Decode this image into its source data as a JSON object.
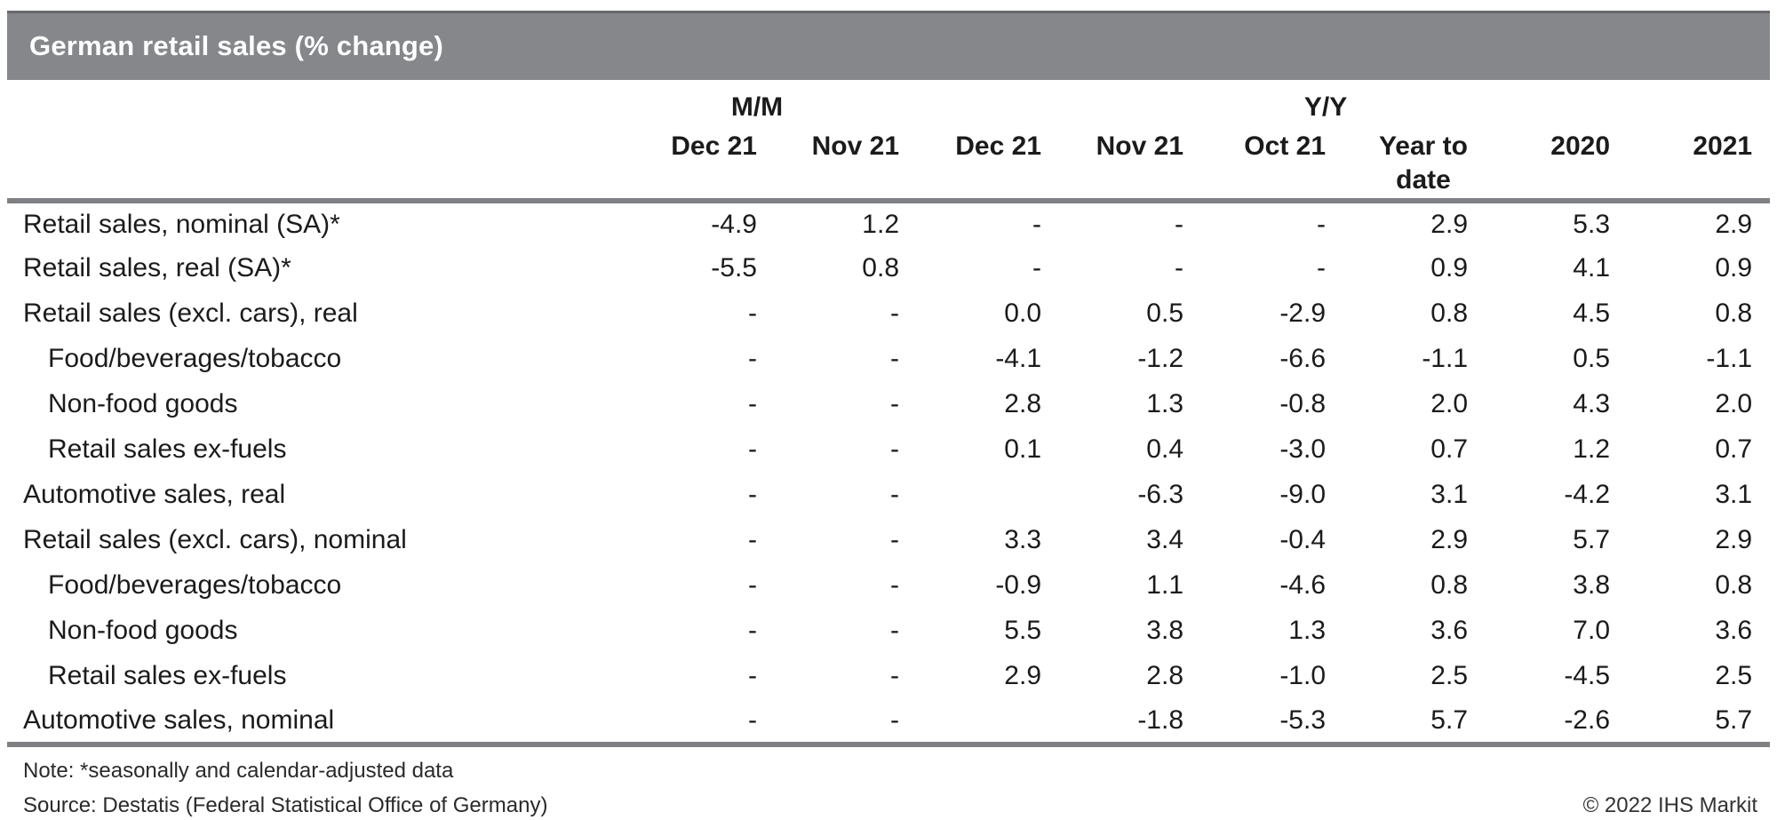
{
  "title_bar": {
    "title": "German retail sales (% change)",
    "background_color": "#85878a",
    "title_color": "#ffffff"
  },
  "chart_data": {
    "type": "table",
    "title": "German retail sales (% change)",
    "group_headers": [
      {
        "label": "M/M",
        "span": 2
      },
      {
        "label": "Y/Y",
        "span": 6
      }
    ],
    "columns": [
      {
        "label": "Dec 21"
      },
      {
        "label": "Nov 21"
      },
      {
        "label": "Dec 21"
      },
      {
        "label": "Nov 21"
      },
      {
        "label": "Oct 21"
      },
      {
        "label": "Year to date",
        "lines": [
          "Year to",
          "date"
        ]
      },
      {
        "label": "2020"
      },
      {
        "label": "2021"
      }
    ],
    "rows": [
      {
        "label": "Retail sales, nominal (SA)*",
        "indent": false,
        "values": [
          "-4.9",
          "1.2",
          "-",
          "-",
          "-",
          "2.9",
          "5.3",
          "2.9"
        ]
      },
      {
        "label": "Retail sales, real (SA)*",
        "indent": false,
        "values": [
          "-5.5",
          "0.8",
          "-",
          "-",
          "-",
          "0.9",
          "4.1",
          "0.9"
        ]
      },
      {
        "label": "Retail sales (excl. cars), real",
        "indent": false,
        "values": [
          "-",
          "-",
          "0.0",
          "0.5",
          "-2.9",
          "0.8",
          "4.5",
          "0.8"
        ]
      },
      {
        "label": "Food/beverages/tobacco",
        "indent": true,
        "values": [
          "-",
          "-",
          "-4.1",
          "-1.2",
          "-6.6",
          "-1.1",
          "0.5",
          "-1.1"
        ]
      },
      {
        "label": "Non-food goods",
        "indent": true,
        "values": [
          "-",
          "-",
          "2.8",
          "1.3",
          "-0.8",
          "2.0",
          "4.3",
          "2.0"
        ]
      },
      {
        "label": "Retail sales ex-fuels",
        "indent": true,
        "values": [
          "-",
          "-",
          "0.1",
          "0.4",
          "-3.0",
          "0.7",
          "1.2",
          "0.7"
        ]
      },
      {
        "label": "Automotive sales, real",
        "indent": false,
        "values": [
          "-",
          "-",
          "",
          "-6.3",
          "-9.0",
          "3.1",
          "-4.2",
          "3.1"
        ]
      },
      {
        "label": "Retail sales (excl. cars), nominal",
        "indent": false,
        "values": [
          "-",
          "-",
          "3.3",
          "3.4",
          "-0.4",
          "2.9",
          "5.7",
          "2.9"
        ]
      },
      {
        "label": "Food/beverages/tobacco",
        "indent": true,
        "values": [
          "-",
          "-",
          "-0.9",
          "1.1",
          "-4.6",
          "0.8",
          "3.8",
          "0.8"
        ]
      },
      {
        "label": "Non-food goods",
        "indent": true,
        "values": [
          "-",
          "-",
          "5.5",
          "3.8",
          "1.3",
          "3.6",
          "7.0",
          "3.6"
        ]
      },
      {
        "label": "Retail sales ex-fuels",
        "indent": true,
        "values": [
          "-",
          "-",
          "2.9",
          "2.8",
          "-1.0",
          "2.5",
          "-4.5",
          "2.5"
        ]
      },
      {
        "label": "Automotive sales, nominal",
        "indent": false,
        "values": [
          "-",
          "-",
          "",
          "-1.8",
          "-5.3",
          "5.7",
          "-2.6",
          "5.7"
        ]
      }
    ]
  },
  "footer": {
    "note": "Note: *seasonally and calendar-adjusted data",
    "source": "Source: Destatis (Federal Statistical Office of Germany)",
    "copyright": "© 2022 IHS Markit"
  },
  "colors": {
    "title_bar_gray": "#85878a",
    "rule_gray": "#7e8083",
    "text": "#1b1b1b"
  }
}
